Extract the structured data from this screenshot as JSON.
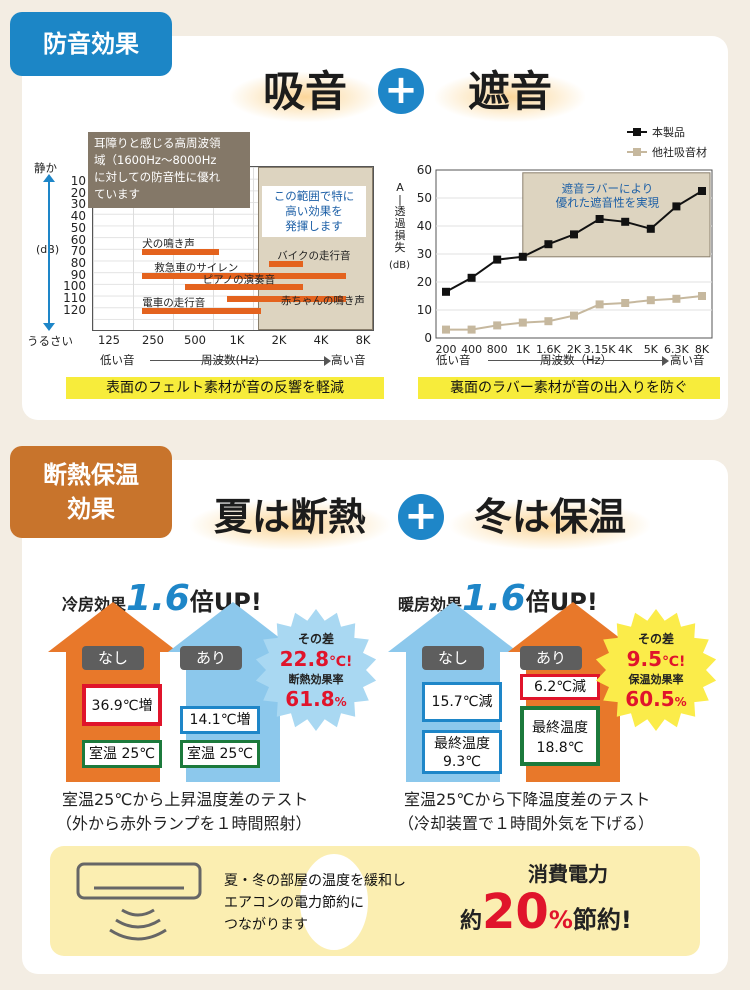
{
  "sound": {
    "tag": "防音効果",
    "word1": "吸音",
    "plus": "+",
    "word2": "遮音",
    "left": {
      "note": "耳障りと感じる高周波領域（1600Hz〜8000Hz）に対しての防音性に優れています",
      "note_lines": [
        "耳障りと感じる高周波領",
        "域（1600Hz〜8000Hz",
        "に対しての防音性に優れ",
        "ています"
      ],
      "range_label_lines": [
        "この範囲で特に",
        "高い効果を",
        "発揮します"
      ],
      "y_top": "静か",
      "y_unit": "(dB)",
      "y_bottom": "うるさい",
      "y_ticks": [
        "10",
        "20",
        "30",
        "40",
        "50",
        "60",
        "70",
        "80",
        "90",
        "100",
        "110",
        "120"
      ],
      "x_ticks": [
        "125",
        "250",
        "500",
        "1K",
        "2K",
        "4K",
        "8K"
      ],
      "x_low": "低い音",
      "x_mid": "周波数(Hz)",
      "x_high": "高い音",
      "bars": [
        {
          "label": "犬の鳴き声"
        },
        {
          "label": "バイクの走行音"
        },
        {
          "label": "救急車のサイレン"
        },
        {
          "label": "ピアノの演奏音"
        },
        {
          "label": "赤ちゃんの鳴き声"
        },
        {
          "label": "電車の走行音"
        }
      ],
      "caption": "表面のフェルト素材が音の反響を軽減"
    },
    "right": {
      "legend_a": "本製品",
      "legend_b": "他社吸音材",
      "y_label_lines": [
        "A",
        "|",
        "透",
        "過",
        "損",
        "失"
      ],
      "y_unit": "(dB)",
      "range_label_lines": [
        "遮音ラバーにより",
        "優れた遮音性を実現"
      ],
      "y_ticks": [
        "0",
        "10",
        "20",
        "30",
        "40",
        "50",
        "60"
      ],
      "x_ticks": [
        "200",
        "400",
        "800",
        "1K",
        "1.6K",
        "2K",
        "3.15K",
        "4K",
        "5K",
        "6.3K",
        "8K"
      ],
      "x_low": "低い音",
      "x_mid": "周波数（Hz）",
      "x_high": "高い音",
      "caption": "裏面のラバー素材が音の出入りを防ぐ"
    }
  },
  "chart_data": [
    {
      "type": "bar",
      "title": "",
      "ylabel": "(dB)",
      "xlabel": "周波数(Hz)",
      "categories": [
        "犬の鳴き声",
        "バイクの走行音",
        "救急車のサイレン",
        "ピアノの演奏音",
        "赤ちゃんの鳴き声",
        "電車の走行音"
      ],
      "series": [
        {
          "values": [
            [
              250,
              1000
            ],
            [
              2000,
              4000
            ],
            [
              250,
              8000
            ],
            [
              500,
              4000
            ],
            [
              1000,
              8000
            ],
            [
              250,
              2000
            ]
          ]
        }
      ],
      "db_levels": [
        70,
        80,
        90,
        100,
        110,
        120
      ],
      "x_axis": [
        "125",
        "250",
        "500",
        "1K",
        "2K",
        "4K",
        "8K"
      ],
      "ylim": [
        0,
        120
      ],
      "highlight_range": [
        "1600",
        "8000"
      ]
    },
    {
      "type": "line",
      "xlabel": "周波数（Hz）",
      "ylabel": "透過損失(dB)",
      "x": [
        "200",
        "400",
        "800",
        "1K",
        "1.6K",
        "2K",
        "3.15K",
        "4K",
        "5K",
        "6.3K",
        "8K"
      ],
      "series": [
        {
          "name": "本製品",
          "values": [
            16.5,
            21.5,
            28,
            29,
            33.5,
            37,
            42.5,
            41.5,
            39,
            47,
            52.5
          ]
        },
        {
          "name": "他社吸音材",
          "values": [
            3,
            3,
            4.5,
            5.5,
            6,
            8,
            12,
            12.5,
            13.5,
            14,
            15
          ]
        }
      ],
      "ylim": [
        0,
        60
      ]
    }
  ],
  "thermal": {
    "tag_lines": [
      "断熱保温",
      "効果"
    ],
    "word1": "夏は断熱",
    "plus": "+",
    "word2": "冬は保温",
    "cool": {
      "prefix": "冷房効果",
      "ratio": "1.6",
      "suffix": "倍UP!",
      "without": "なし",
      "with": "あり",
      "without_value": "36.9℃増",
      "with_value": "14.1℃増",
      "room1": "室温 25℃",
      "room2": "室温 25℃",
      "diff_label": "その差",
      "diff_value": "22.8",
      "diff_unit": "℃!",
      "rate_label": "断熱効果率",
      "rate_value": "61.8",
      "rate_unit": "%",
      "caption1": "室温25℃から上昇温度差のテスト",
      "caption2": "（外から赤外ランプを１時間照射）"
    },
    "warm": {
      "prefix": "暖房効果",
      "ratio": "1.6",
      "suffix": "倍UP!",
      "without": "なし",
      "with": "あり",
      "without_value": "15.7℃減",
      "with_value": "6.2℃減",
      "final1": "最終温度",
      "final1_value": "9.3℃",
      "final2": "最終温度",
      "final2_value": "18.8℃",
      "diff_label": "その差",
      "diff_value": "9.5",
      "diff_unit": "℃!",
      "rate_label": "保温効果率",
      "rate_value": "60.5",
      "rate_unit": "%",
      "caption1": "室温25℃から下降温度差のテスト",
      "caption2": "（冷却装置で１時間外気を下げる）"
    },
    "energy": {
      "line1": "夏・冬の部屋の温度を緩和し",
      "line2": "エアコンの電力節約に",
      "line3": "つながります",
      "head": "消費電力",
      "pre": "約",
      "value": "20",
      "unit": "%",
      "post": "節約!"
    }
  },
  "colors": {
    "blue": "#1e86c8",
    "orange": "#e8782a",
    "red": "#e0142b",
    "sky": "#a8d8f2",
    "green": "#1c7a3c",
    "yellow": "#fbec4a"
  }
}
